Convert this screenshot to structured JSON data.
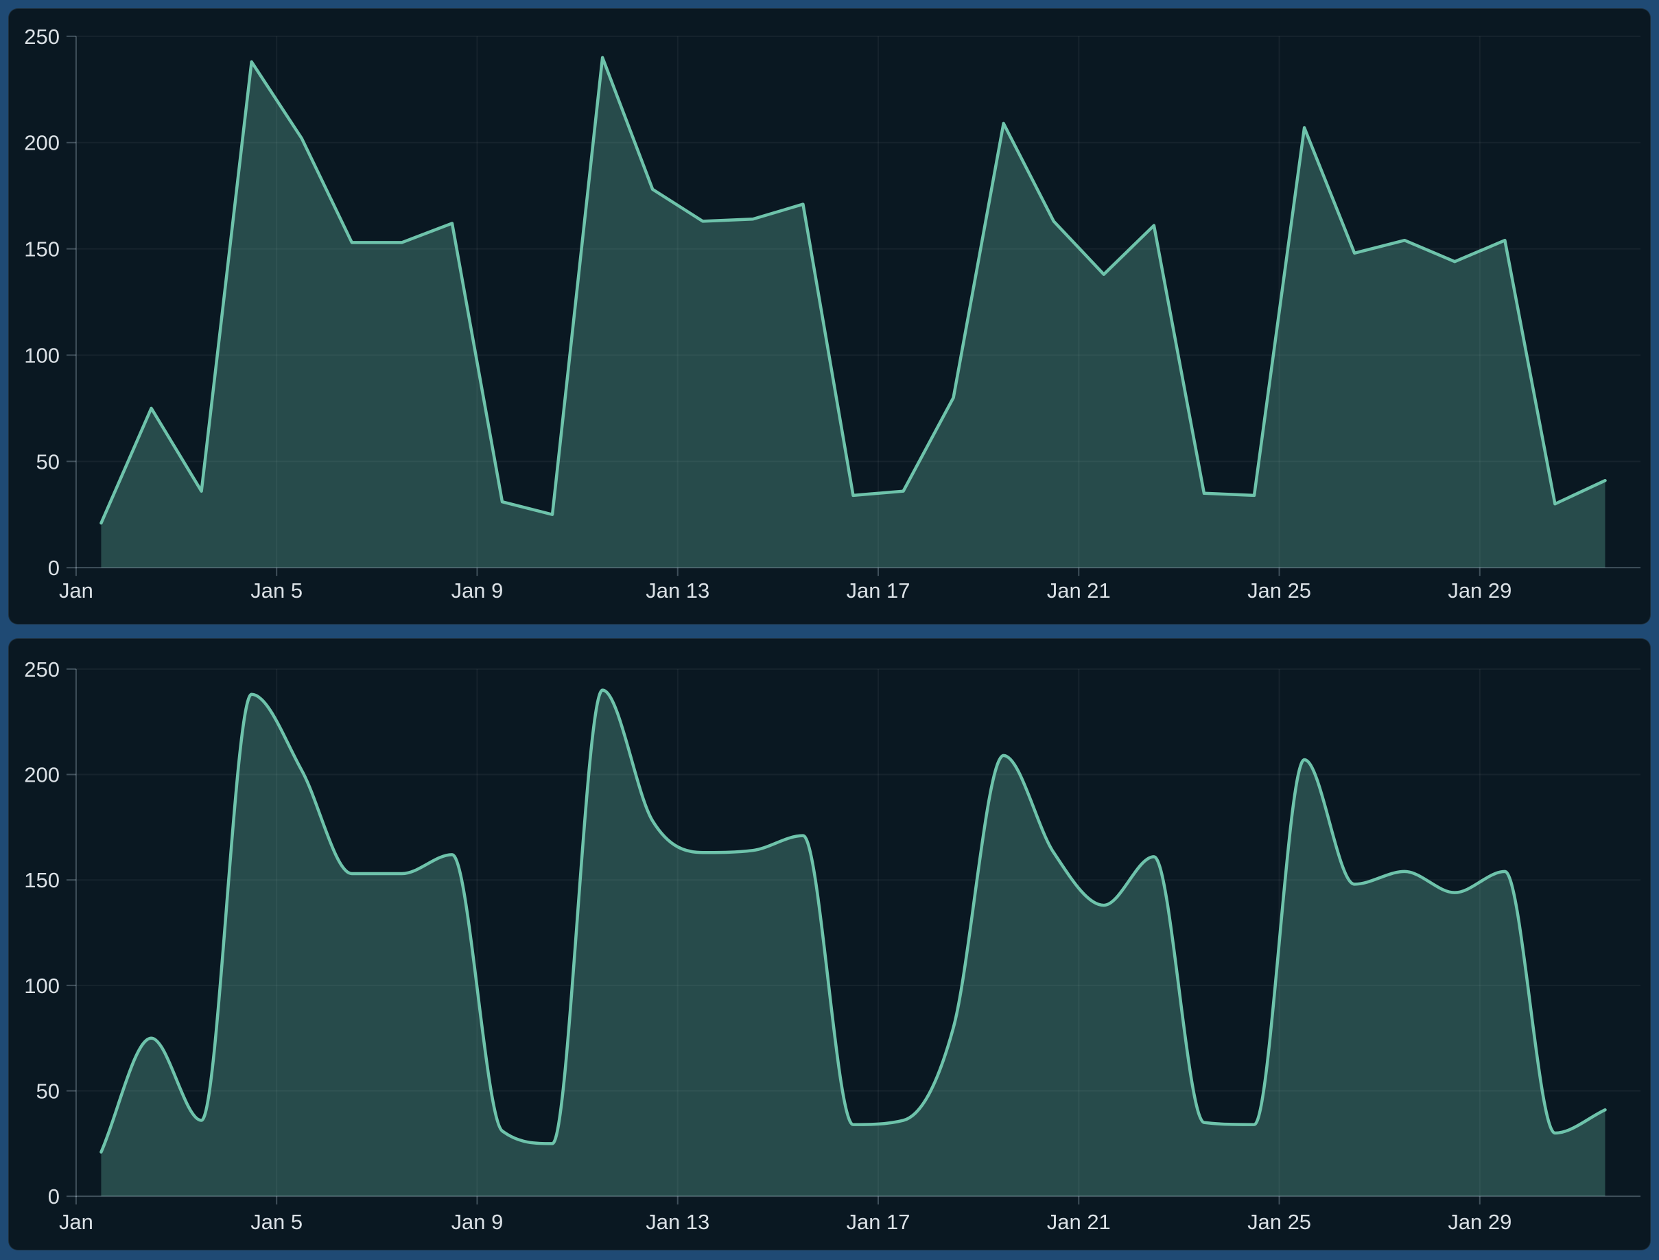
{
  "page": {
    "background_color": "#1f4a74",
    "panel_background_color": "#0a1822",
    "grid_color": "rgba(255,255,255,0.05)",
    "axis_color": "rgba(205,225,240,0.28)",
    "axis_text_color": "#dbe1e6"
  },
  "chart_data": [
    {
      "id": "area-chart-linear",
      "type": "area",
      "curve": "linear",
      "title": "",
      "x_unit": "day of January",
      "x_days": [
        1,
        2,
        3,
        4,
        5,
        6,
        7,
        8,
        9,
        10,
        11,
        12,
        13,
        14,
        15,
        16,
        17,
        18,
        19,
        20,
        21,
        22,
        23,
        24,
        25,
        26,
        27,
        28,
        29,
        30,
        31
      ],
      "values": [
        21,
        75,
        36,
        238,
        202,
        153,
        153,
        162,
        31,
        25,
        240,
        178,
        163,
        164,
        171,
        34,
        36,
        80,
        209,
        163,
        138,
        161,
        35,
        34,
        207,
        148,
        154,
        144,
        154,
        30,
        41
      ],
      "x_tick_days": [
        1,
        5,
        9,
        13,
        17,
        21,
        25,
        29
      ],
      "x_tick_labels": [
        "Jan",
        "Jan 5",
        "Jan 9",
        "Jan 13",
        "Jan 17",
        "Jan 21",
        "Jan 25",
        "Jan 29"
      ],
      "y_ticks": [
        0,
        50,
        100,
        150,
        200,
        250
      ],
      "ylim": [
        0,
        250
      ],
      "grid": true,
      "legend": "none",
      "line_color": "#6ec3ab",
      "fill_color": "rgba(110,195,171,0.30)"
    },
    {
      "id": "area-chart-smooth",
      "type": "area",
      "curve": "smooth",
      "title": "",
      "x_unit": "day of January",
      "x_days": [
        1,
        2,
        3,
        4,
        5,
        6,
        7,
        8,
        9,
        10,
        11,
        12,
        13,
        14,
        15,
        16,
        17,
        18,
        19,
        20,
        21,
        22,
        23,
        24,
        25,
        26,
        27,
        28,
        29,
        30,
        31
      ],
      "values": [
        21,
        75,
        36,
        238,
        202,
        153,
        153,
        162,
        31,
        25,
        240,
        178,
        163,
        164,
        171,
        34,
        36,
        80,
        209,
        163,
        138,
        161,
        35,
        34,
        207,
        148,
        154,
        144,
        154,
        30,
        41
      ],
      "x_tick_days": [
        1,
        5,
        9,
        13,
        17,
        21,
        25,
        29
      ],
      "x_tick_labels": [
        "Jan",
        "Jan 5",
        "Jan 9",
        "Jan 13",
        "Jan 17",
        "Jan 21",
        "Jan 25",
        "Jan 29"
      ],
      "y_ticks": [
        0,
        50,
        100,
        150,
        200,
        250
      ],
      "ylim": [
        0,
        250
      ],
      "grid": true,
      "legend": "none",
      "line_color": "#6ec3ab",
      "fill_color": "rgba(110,195,171,0.30)"
    }
  ]
}
